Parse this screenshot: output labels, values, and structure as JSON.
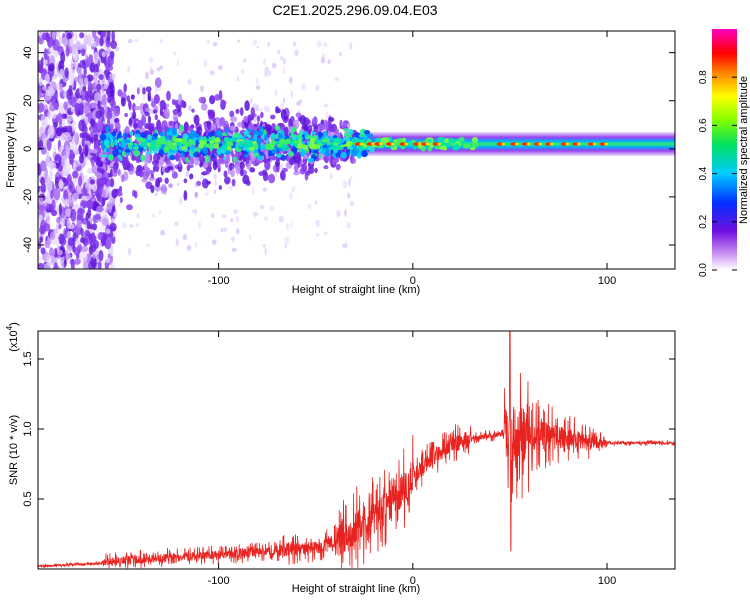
{
  "title": "C2E1.2025.296.09.04.E03",
  "colors": {
    "snr_line": "#e8221e",
    "axis": "#000000",
    "background": "#ffffff"
  },
  "chart_data": [
    {
      "type": "heatmap",
      "name": "spectrogram",
      "xlabel": "Height of straight line (km)",
      "ylabel": "Frequency (Hz)",
      "xlim": [
        -193,
        135
      ],
      "ylim": [
        -50,
        49
      ],
      "xticks": [
        -100,
        0,
        100
      ],
      "yticks": [
        -40,
        -20,
        0,
        20,
        40
      ],
      "xtick_labels": [
        "-100",
        "0",
        "100"
      ],
      "ytick_labels": [
        "-40",
        "-20",
        "0",
        "20",
        "40"
      ],
      "colorbar": {
        "label": "Normalized spectral amplitude",
        "range": [
          0,
          1
        ],
        "ticks": [
          0.0,
          0.2,
          0.4,
          0.6,
          0.8
        ],
        "tick_labels": [
          "0.0",
          "0.2",
          "0.4",
          "0.6",
          "0.8"
        ],
        "colormap": "rainbow (white-violet-blue-cyan-green-yellow-red-magenta)"
      },
      "description_of_content": {
        "band_center_hz": 2,
        "scatter_region_km": [
          -193,
          -160
        ],
        "noisy_region_km": [
          -160,
          -35
        ],
        "stable_band_km": [
          -35,
          135
        ]
      }
    },
    {
      "type": "line",
      "name": "snr",
      "xlabel": "Height of straight line (km)",
      "ylabel": "SNR (10 * v/v)",
      "multiplier_label": "(x10",
      "multiplier_exponent": "4",
      "xlim": [
        -193,
        135
      ],
      "ylim": [
        0,
        1.7
      ],
      "xticks": [
        -100,
        0,
        100
      ],
      "yticks": [
        0.5,
        1.0,
        1.5
      ],
      "xtick_labels": [
        "-100",
        "0",
        "100"
      ],
      "ytick_labels": [
        "0.5",
        "1.0",
        "1.5"
      ],
      "series": [
        {
          "name": "SNR",
          "color": "#e8221e",
          "trend_x": [
            -193,
            -160,
            -140,
            -100,
            -70,
            -50,
            -40,
            -30,
            -20,
            -10,
            0,
            10,
            20,
            30,
            40,
            48,
            50,
            52,
            55,
            60,
            70,
            80,
            90,
            100,
            110,
            135
          ],
          "trend_y": [
            0.02,
            0.04,
            0.07,
            0.1,
            0.13,
            0.15,
            0.2,
            0.28,
            0.38,
            0.5,
            0.65,
            0.8,
            0.89,
            0.93,
            0.95,
            0.97,
            0.9,
            0.95,
            0.97,
            0.97,
            0.95,
            0.93,
            0.91,
            0.9,
            0.9,
            0.9
          ],
          "peak": {
            "x": 50,
            "y": 1.7
          },
          "trough": {
            "x": 50.5,
            "y": 0.13
          }
        }
      ]
    }
  ]
}
